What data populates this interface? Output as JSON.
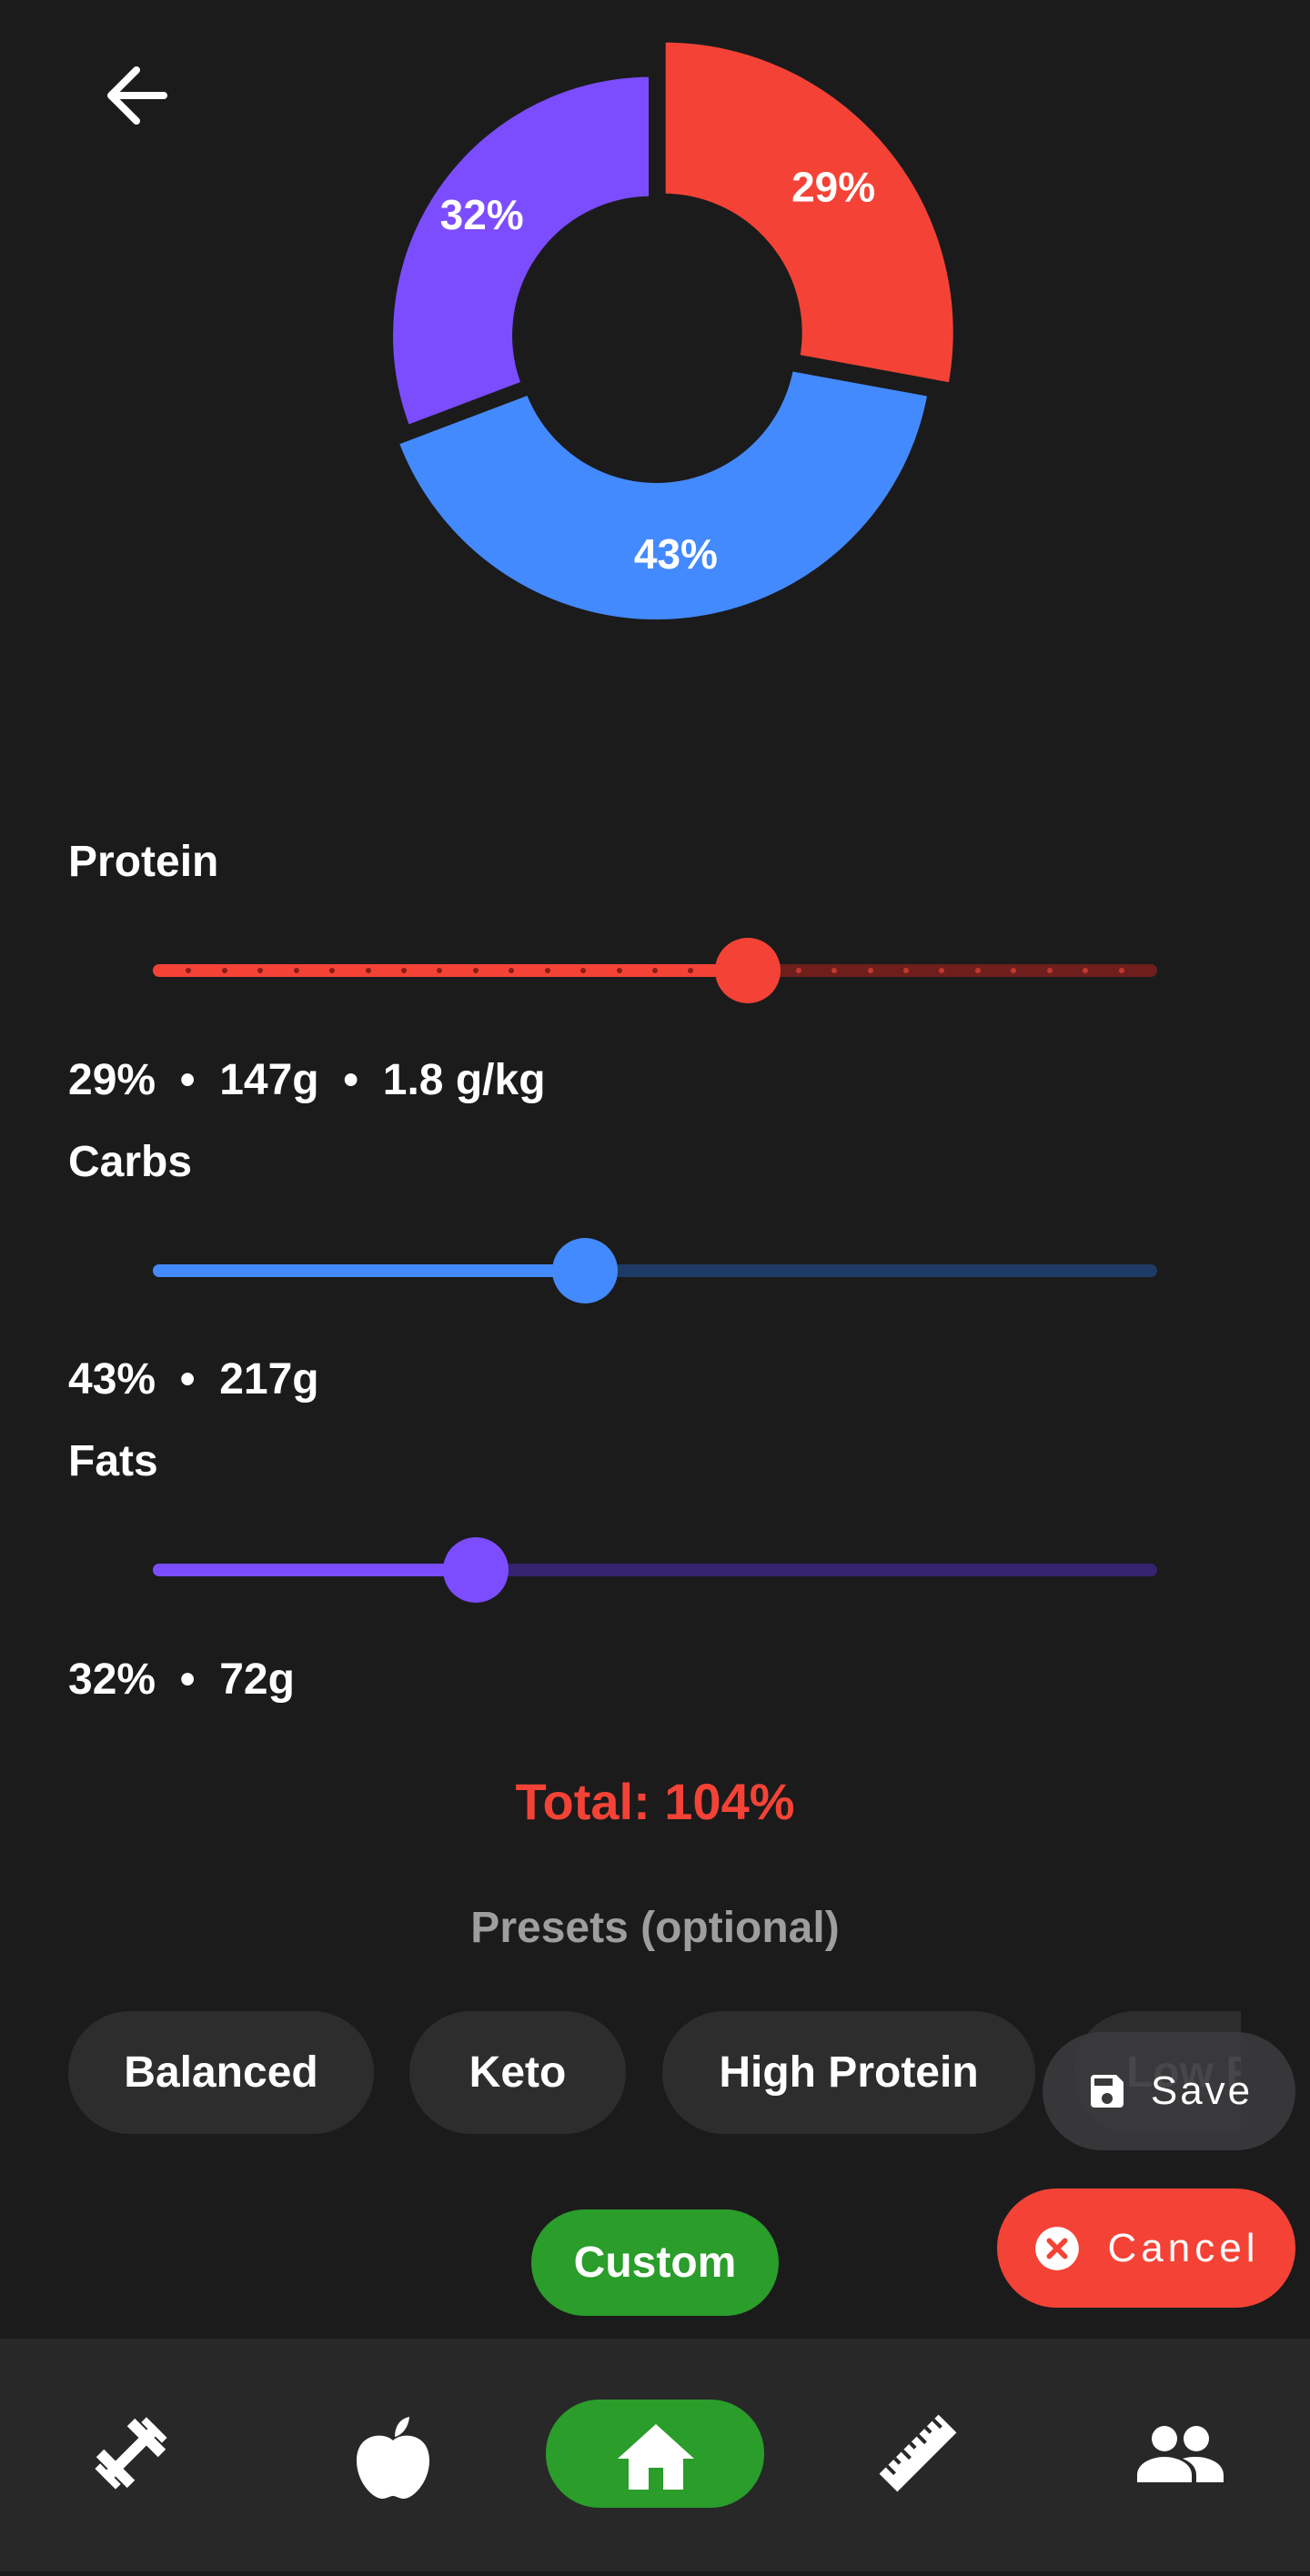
{
  "chart_data": {
    "type": "pie",
    "donut": true,
    "values": [
      29,
      43,
      32
    ],
    "value_labels": [
      "29%",
      "43%",
      "32%"
    ],
    "colors": [
      "#f44336",
      "#448aff",
      "#7c4dff"
    ]
  },
  "macros": [
    {
      "name": "Protein",
      "detail": "29%  •  147g  •  1.8 g/kg"
    },
    {
      "name": "Carbs",
      "detail": "43%  •  217g"
    },
    {
      "name": "Fats",
      "detail": "32%  •  72g"
    }
  ],
  "total": "Total: 104%",
  "presets_title": "Presets (optional)",
  "presets": [
    "Balanced",
    "Keto",
    "High Protein",
    "Low F"
  ],
  "save": "Save",
  "cancel": "Cancel",
  "custom": "Custom"
}
